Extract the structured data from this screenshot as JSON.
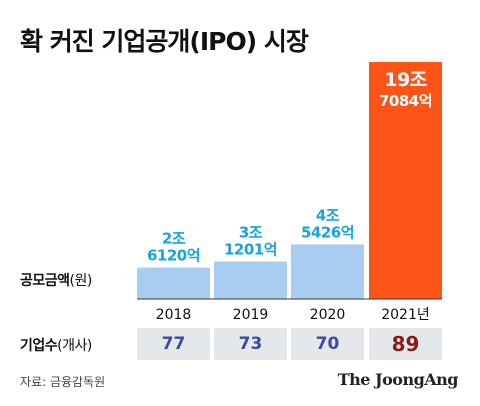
{
  "title": "확 커진 기업공개(IPO) 시장",
  "row_labels": {
    "amount_bold": "공모금액",
    "amount_unit": "(원)",
    "count_bold": "기업수",
    "count_unit": "(개사)"
  },
  "colors": {
    "bar": "#a9cdf0",
    "bar_highlight": "#fc5316",
    "label": "#18a6d8",
    "label_highlight": "#ffffff",
    "count_text": "#3b4c9e",
    "count_text_highlight": "#8a1a1a",
    "cell_bg": "#e4e8ea"
  },
  "chart_data": {
    "type": "bar",
    "categories": [
      "2018",
      "2019",
      "2020",
      "2021년"
    ],
    "values": [
      26120,
      31201,
      45426,
      197084
    ],
    "value_labels": [
      [
        "2조",
        "6120억"
      ],
      [
        "3조",
        "1201억"
      ],
      [
        "4조",
        "5426억"
      ],
      [
        "19조",
        "7084억"
      ]
    ],
    "highlight_index": 3,
    "ylim": [
      0,
      197084
    ]
  },
  "counts": [
    "77",
    "73",
    "70",
    "89"
  ],
  "source": "자료: 금융감독원",
  "brand": "The JoongAng"
}
